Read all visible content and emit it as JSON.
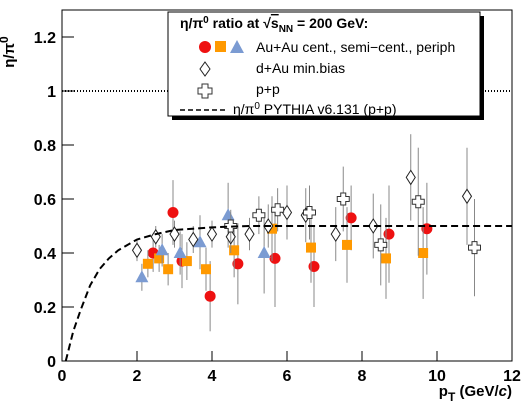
{
  "chart_data": {
    "type": "scatter",
    "x_label": {
      "main": "p",
      "sub": "T",
      "rest": " (GeV/",
      "italic": "c",
      "end": ")"
    },
    "y_label": {
      "main": "η/π",
      "sup": "0"
    },
    "legend": {
      "title": {
        "a": "η/π",
        "a_sup": "0",
        "b": " ratio at ",
        "root": "√",
        "s": "s",
        "s_sub": "NN",
        "c": " = 200 GeV:"
      },
      "auau": "Au+Au cent., semi−cent., periph",
      "dau": "d+Au min.bias",
      "pp": "p+p",
      "pythia": {
        "a": "η/π",
        "a_sup": "0",
        "b": " PYTHIA v6.131 (p+p)"
      }
    },
    "xlim": [
      0,
      12
    ],
    "ylim": [
      0,
      1.3
    ],
    "xticks": [
      0,
      2,
      4,
      6,
      8,
      10,
      12
    ],
    "yticks": [
      0,
      0.2,
      0.4,
      0.6,
      0.8,
      1,
      1.2
    ],
    "reference_line": 1,
    "series": [
      {
        "marker": "circle",
        "color": "#ee1111",
        "x": [
          2.43,
          2.96,
          3.2,
          3.95,
          4.69,
          5.68,
          6.72,
          7.71,
          8.72,
          9.73
        ],
        "values": [
          0.4,
          0.55,
          0.37,
          0.24,
          0.36,
          0.38,
          0.35,
          0.53,
          0.47,
          0.49
        ],
        "errors": [
          0.07,
          0.12,
          0.1,
          0.13,
          0.15,
          0.18,
          0.15,
          0.12,
          0.18,
          0.17
        ]
      },
      {
        "marker": "square",
        "color": "#ff9900",
        "x": [
          2.29,
          2.59,
          2.83,
          3.33,
          3.84,
          4.59,
          5.6,
          6.64,
          7.6,
          8.64,
          9.63
        ],
        "values": [
          0.36,
          0.38,
          0.34,
          0.37,
          0.34,
          0.41,
          0.49,
          0.42,
          0.43,
          0.38,
          0.4
        ],
        "errors": [
          0.05,
          0.05,
          0.06,
          0.07,
          0.08,
          0.1,
          0.12,
          0.13,
          0.14,
          0.15,
          0.17
        ]
      },
      {
        "marker": "triangle",
        "color": "#7b9bd2",
        "x": [
          2.13,
          2.67,
          3.15,
          3.68,
          4.43,
          5.39
        ],
        "values": [
          0.31,
          0.41,
          0.4,
          0.44,
          0.54,
          0.4
        ],
        "errors": [
          0.05,
          0.06,
          0.08,
          0.1,
          0.12,
          0.15
        ]
      },
      {
        "marker": "diamond-open",
        "color": "#222222",
        "x": [
          2.0,
          2.5,
          3.0,
          3.5,
          4.0,
          4.5,
          5.0,
          5.5,
          6.0,
          6.5,
          7.3,
          8.3,
          9.3,
          10.8
        ],
        "values": [
          0.41,
          0.46,
          0.47,
          0.45,
          0.47,
          0.46,
          0.47,
          0.5,
          0.55,
          0.54,
          0.47,
          0.5,
          0.68,
          0.61
        ],
        "errors": [
          0.04,
          0.04,
          0.05,
          0.05,
          0.05,
          0.06,
          0.06,
          0.08,
          0.1,
          0.1,
          0.1,
          0.12,
          0.16,
          0.18
        ]
      },
      {
        "marker": "cross-open",
        "color": "#333333",
        "x": [
          4.5,
          5.25,
          5.75,
          6.6,
          7.5,
          8.5,
          9.5,
          11.0
        ],
        "values": [
          0.5,
          0.54,
          0.56,
          0.55,
          0.6,
          0.43,
          0.59,
          0.42
        ],
        "errors": [
          0.06,
          0.07,
          0.08,
          0.1,
          0.12,
          0.15,
          0.2,
          0.18
        ]
      },
      {
        "marker": "dashed-line",
        "color": "#000000",
        "x": [
          0.1,
          0.3,
          0.5,
          0.75,
          1,
          1.25,
          1.5,
          2,
          2.5,
          3,
          4,
          5,
          6,
          8,
          10,
          12
        ],
        "values": [
          0,
          0.11,
          0.19,
          0.28,
          0.34,
          0.38,
          0.41,
          0.45,
          0.47,
          0.485,
          0.495,
          0.5,
          0.5,
          0.5,
          0.5,
          0.5
        ]
      }
    ]
  }
}
